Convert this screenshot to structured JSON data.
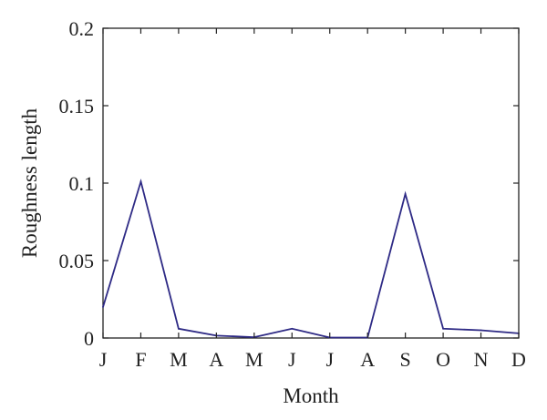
{
  "chart_data": {
    "type": "line",
    "xlabel": "Month",
    "ylabel": "Roughness length",
    "categories": [
      "J",
      "F",
      "M",
      "A",
      "M",
      "J",
      "J",
      "A",
      "S",
      "O",
      "N",
      "D"
    ],
    "series": [
      {
        "values": [
          0.02,
          0.101,
          0.006,
          0.0015,
          0.0005,
          0.006,
          0.0003,
          0.0003,
          0.093,
          0.006,
          0.005,
          0.003
        ]
      }
    ],
    "ylim": [
      0,
      0.2
    ],
    "yticks": [
      0,
      0.05,
      0.1,
      0.15,
      0.2
    ],
    "ytick_labels": [
      "0",
      "0.05",
      "0.1",
      "0.15",
      "0.2"
    ],
    "grid": false,
    "colors": {
      "line": "#2e2a85",
      "axis": "#222222"
    }
  }
}
